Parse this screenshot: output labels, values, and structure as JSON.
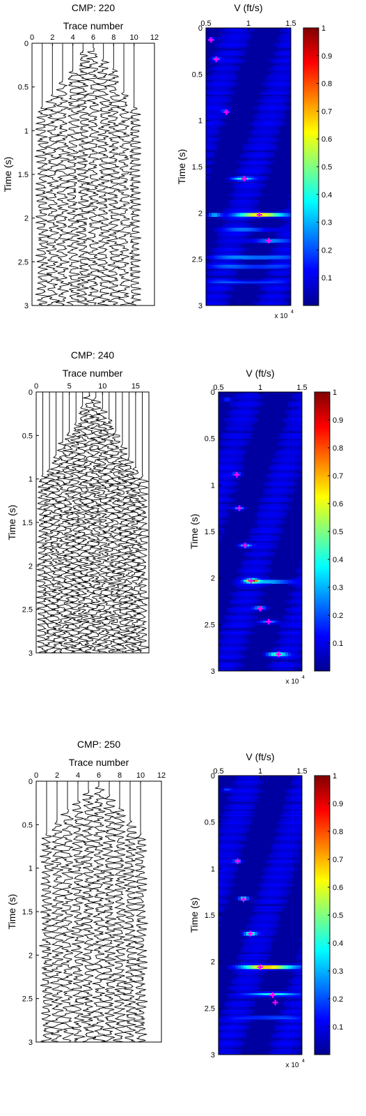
{
  "colors": {
    "background": "#ffffff",
    "axes": "#000000",
    "picks": "#ff00ff",
    "colormap": [
      "#00008f",
      "#0000ff",
      "#0080ff",
      "#00ffff",
      "#80ff80",
      "#ffff00",
      "#ff8000",
      "#ff0000",
      "#800000"
    ]
  },
  "chart_data": [
    {
      "type": "line",
      "panel": "gather",
      "title": "CMP: 220",
      "xlabel": "Trace number",
      "ylabel": "Time (s)",
      "xlim": [
        0,
        12
      ],
      "ylim": [
        0,
        3
      ],
      "y_reversed": true,
      "x_axis_position": "top",
      "xticks": [
        0,
        2,
        4,
        6,
        8,
        10,
        12
      ],
      "yticks": [
        0,
        0.5,
        1,
        1.5,
        2,
        2.5,
        3
      ],
      "traces": [
        1,
        2,
        3,
        4,
        5,
        6,
        7,
        8,
        9,
        10
      ],
      "mute_start_s": [
        0.72,
        0.58,
        0.42,
        0.3,
        0.08,
        0.05,
        0.18,
        0.28,
        0.55,
        0.72
      ],
      "trace_end_s": 3
    },
    {
      "type": "heatmap",
      "panel": "velocity-spectrum",
      "title": "V (ft/s)",
      "xlabel": "",
      "ylabel": "Time (s)",
      "xlim": [
        0.5,
        1.5
      ],
      "x_exponent_label": "x 10",
      "x_exponent": "4",
      "ylim": [
        0,
        3
      ],
      "y_reversed": true,
      "x_axis_position": "top",
      "xticks": [
        0.5,
        1,
        1.5
      ],
      "yticks": [
        0,
        0.5,
        1,
        1.5,
        2,
        2.5,
        3
      ],
      "colorbar": {
        "range": [
          0,
          1
        ],
        "ticks": [
          0.1,
          0.2,
          0.3,
          0.4,
          0.5,
          0.6,
          0.7,
          0.8,
          0.9,
          1
        ]
      },
      "energy_events": [
        {
          "t": 0.12,
          "v": 0.56,
          "amp": 0.2,
          "w": 0.04
        },
        {
          "t": 0.33,
          "v": 0.62,
          "amp": 0.2,
          "w": 0.05
        },
        {
          "t": 0.9,
          "v": 0.72,
          "amp": 0.15,
          "w": 0.06
        },
        {
          "t": 1.63,
          "v": 0.92,
          "amp": 0.32,
          "w": 0.12
        },
        {
          "t": 2.02,
          "v": 0.6,
          "amp": 0.35,
          "w": 0.08
        },
        {
          "t": 2.02,
          "v": 1.15,
          "amp": 0.82,
          "w": 0.28
        },
        {
          "t": 2.18,
          "v": 1.0,
          "amp": 0.22,
          "w": 0.3
        },
        {
          "t": 2.3,
          "v": 1.25,
          "amp": 0.28,
          "w": 0.2
        },
        {
          "t": 2.48,
          "v": 1.05,
          "amp": 0.28,
          "w": 0.45
        },
        {
          "t": 2.58,
          "v": 1.0,
          "amp": 0.2,
          "w": 0.45
        },
        {
          "t": 2.75,
          "v": 0.95,
          "amp": 0.15,
          "w": 0.4
        }
      ],
      "picks": [
        {
          "t": 0.13,
          "v": 0.56
        },
        {
          "t": 0.34,
          "v": 0.62
        },
        {
          "t": 0.91,
          "v": 0.74
        },
        {
          "t": 1.63,
          "v": 0.95
        },
        {
          "t": 2.02,
          "v": 1.13
        },
        {
          "t": 2.3,
          "v": 1.24
        }
      ]
    },
    {
      "type": "line",
      "panel": "gather",
      "title": "CMP: 240",
      "xlabel": "Trace number",
      "ylabel": "Time (s)",
      "xlim": [
        0,
        17
      ],
      "ylim": [
        0,
        3
      ],
      "y_reversed": true,
      "x_axis_position": "top",
      "xticks": [
        0,
        5,
        10,
        15
      ],
      "yticks": [
        0,
        0.5,
        1,
        1.5,
        2,
        2.5,
        3
      ],
      "traces": [
        1,
        2,
        3,
        4,
        5,
        6,
        7,
        8,
        9,
        10,
        11,
        12,
        13,
        14,
        15,
        16
      ],
      "mute_start_s": [
        0.95,
        0.88,
        0.72,
        0.55,
        0.45,
        0.35,
        0.15,
        0.02,
        0.05,
        0.18,
        0.3,
        0.45,
        0.6,
        0.75,
        0.85,
        0.95
      ],
      "trace_end_s": 3
    },
    {
      "type": "heatmap",
      "panel": "velocity-spectrum",
      "title": "V (ft/s)",
      "xlabel": "",
      "ylabel": "Time (s)",
      "xlim": [
        0.5,
        1.5
      ],
      "x_exponent_label": "x 10",
      "x_exponent": "4",
      "ylim": [
        0,
        3
      ],
      "y_reversed": true,
      "x_axis_position": "top",
      "xticks": [
        0.5,
        1,
        1.5
      ],
      "yticks": [
        0,
        0.5,
        1,
        1.5,
        2,
        2.5,
        3
      ],
      "colorbar": {
        "range": [
          0,
          1
        ],
        "ticks": [
          0.1,
          0.2,
          0.3,
          0.4,
          0.5,
          0.6,
          0.7,
          0.8,
          0.9,
          1
        ]
      },
      "energy_events": [
        {
          "t": 0.08,
          "v": 0.6,
          "amp": 0.18,
          "w": 0.05
        },
        {
          "t": 0.88,
          "v": 0.72,
          "amp": 0.2,
          "w": 0.05
        },
        {
          "t": 1.25,
          "v": 0.75,
          "amp": 0.3,
          "w": 0.06
        },
        {
          "t": 1.65,
          "v": 0.82,
          "amp": 0.35,
          "w": 0.07
        },
        {
          "t": 2.03,
          "v": 0.9,
          "amp": 0.8,
          "w": 0.07
        },
        {
          "t": 2.04,
          "v": 1.1,
          "amp": 0.35,
          "w": 0.3
        },
        {
          "t": 2.32,
          "v": 1.0,
          "amp": 0.3,
          "w": 0.08
        },
        {
          "t": 2.47,
          "v": 1.1,
          "amp": 0.28,
          "w": 0.1
        },
        {
          "t": 2.82,
          "v": 1.2,
          "amp": 0.5,
          "w": 0.12
        }
      ],
      "picks": [
        {
          "t": 0.89,
          "v": 0.72
        },
        {
          "t": 1.25,
          "v": 0.75
        },
        {
          "t": 1.65,
          "v": 0.82
        },
        {
          "t": 2.03,
          "v": 0.89
        },
        {
          "t": 2.33,
          "v": 1.0
        },
        {
          "t": 2.47,
          "v": 1.1
        },
        {
          "t": 2.82,
          "v": 1.22
        }
      ]
    },
    {
      "type": "line",
      "panel": "gather",
      "title": "CMP: 250",
      "xlabel": "Trace number",
      "ylabel": "Time (s)",
      "xlim": [
        0,
        12
      ],
      "ylim": [
        0,
        3
      ],
      "y_reversed": true,
      "x_axis_position": "top",
      "xticks": [
        0,
        2,
        4,
        6,
        8,
        10,
        12
      ],
      "yticks": [
        0,
        0.5,
        1,
        1.5,
        2,
        2.5,
        3
      ],
      "traces": [
        1,
        2,
        3,
        4,
        5,
        6,
        7,
        8,
        9,
        10
      ],
      "mute_start_s": [
        0.6,
        0.45,
        0.32,
        0.22,
        0.1,
        0.05,
        0.15,
        0.3,
        0.45,
        0.6
      ],
      "trace_end_s": 3
    },
    {
      "type": "heatmap",
      "panel": "velocity-spectrum",
      "title": "V (ft/s)",
      "xlabel": "",
      "ylabel": "Time (s)",
      "xlim": [
        0.5,
        1.5
      ],
      "x_exponent_label": "x 10",
      "x_exponent": "4",
      "ylim": [
        0,
        3
      ],
      "y_reversed": true,
      "x_axis_position": "top",
      "xticks": [
        0.5,
        1,
        1.5
      ],
      "yticks": [
        0,
        0.5,
        1,
        1.5,
        2,
        2.5,
        3
      ],
      "colorbar": {
        "range": [
          0,
          1
        ],
        "ticks": [
          0.1,
          0.2,
          0.3,
          0.4,
          0.5,
          0.6,
          0.7,
          0.8,
          0.9,
          1
        ]
      },
      "energy_events": [
        {
          "t": 0.15,
          "v": 0.6,
          "amp": 0.15,
          "w": 0.06
        },
        {
          "t": 0.92,
          "v": 0.73,
          "amp": 0.22,
          "w": 0.05
        },
        {
          "t": 1.32,
          "v": 0.8,
          "amp": 0.45,
          "w": 0.06
        },
        {
          "t": 1.7,
          "v": 0.88,
          "amp": 0.5,
          "w": 0.07
        },
        {
          "t": 2.06,
          "v": 1.1,
          "amp": 0.85,
          "w": 0.3
        },
        {
          "t": 2.35,
          "v": 1.15,
          "amp": 0.4,
          "w": 0.25
        },
        {
          "t": 2.6,
          "v": 1.1,
          "amp": 0.2,
          "w": 0.35
        }
      ],
      "picks": [
        {
          "t": 0.92,
          "v": 0.73
        },
        {
          "t": 1.33,
          "v": 0.8
        },
        {
          "t": 1.7,
          "v": 0.88
        },
        {
          "t": 2.06,
          "v": 1.0
        },
        {
          "t": 2.36,
          "v": 1.15
        },
        {
          "t": 2.44,
          "v": 1.18
        }
      ]
    }
  ]
}
